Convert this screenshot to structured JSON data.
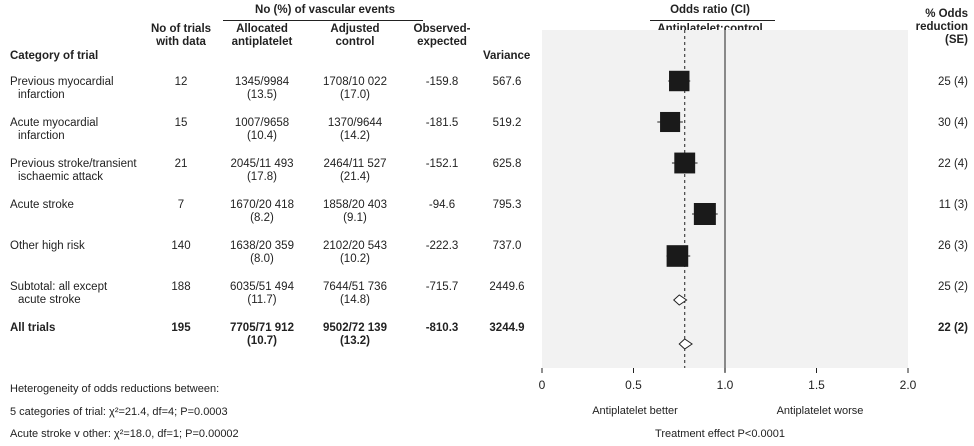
{
  "headers": {
    "events_group": "No (%) of vascular events",
    "category": "Category of trial",
    "n_trials": "No of trials with data",
    "allocated": "Allocated antiplatelet",
    "adjusted": "Adjusted control",
    "oe": "Observed-expected",
    "variance": "Variance",
    "odds_ratio": "Odds ratio (CI)",
    "comparison": "Antiplatelet:control",
    "pct_reduction": "% Odds reduction (SE)"
  },
  "rows": [
    {
      "label_1": "Previous myocardial",
      "label_2": "infarction",
      "n": "12",
      "alloc_1": "1345/9984",
      "alloc_2": "(13.5)",
      "adj_1": "1708/10 022",
      "adj_2": "(17.0)",
      "oe": "-159.8",
      "var": "567.6",
      "reduction": "25 (4)"
    },
    {
      "label_1": "Acute myocardial",
      "label_2": "infarction",
      "n": "15",
      "alloc_1": "1007/9658",
      "alloc_2": "(10.4)",
      "adj_1": "1370/9644",
      "adj_2": "(14.2)",
      "oe": "-181.5",
      "var": "519.2",
      "reduction": "30 (4)"
    },
    {
      "label_1": "Previous stroke/transient",
      "label_2": "ischaemic attack",
      "n": "21",
      "alloc_1": "2045/11 493",
      "alloc_2": "(17.8)",
      "adj_1": "2464/11 527",
      "adj_2": "(21.4)",
      "oe": "-152.1",
      "var": "625.8",
      "reduction": "22 (4)"
    },
    {
      "label_1": "Acute stroke",
      "label_2": "",
      "n": "7",
      "alloc_1": "1670/20 418",
      "alloc_2": "(8.2)",
      "adj_1": "1858/20 403",
      "adj_2": "(9.1)",
      "oe": "-94.6",
      "var": "795.3",
      "reduction": "11 (3)"
    },
    {
      "label_1": "Other high risk",
      "label_2": "",
      "n": "140",
      "alloc_1": "1638/20 359",
      "alloc_2": "(8.0)",
      "adj_1": "2102/20 543",
      "adj_2": "(10.2)",
      "oe": "-222.3",
      "var": "737.0",
      "reduction": "26 (3)"
    },
    {
      "label_1": "Subtotal: all except",
      "label_2": "acute stroke",
      "n": "188",
      "alloc_1": "6035/51 494",
      "alloc_2": "(11.7)",
      "adj_1": "7644/51 736",
      "adj_2": "(14.8)",
      "oe": "-715.7",
      "var": "2449.6",
      "reduction": "25 (2)"
    },
    {
      "label_1": "All trials",
      "label_2": "",
      "n": "195",
      "alloc_1": "7705/71 912",
      "alloc_2": "(10.7)",
      "adj_1": "9502/72 139",
      "adj_2": "(13.2)",
      "oe": "-810.3",
      "var": "3244.9",
      "reduction": "22 (2)"
    }
  ],
  "footnotes": {
    "line1": "Heterogeneity of odds reductions between:",
    "line2": "5 categories of trial: χ²=21.4, df=4; P=0.0003",
    "line3": "Acute stroke v other: χ²=18.0, df=1; P=0.00002"
  },
  "axis": {
    "better": "Antiplatelet better",
    "worse": "Antiplatelet worse",
    "effect": "Treatment effect P<0.0001"
  },
  "colors": {
    "panel": "#f2f2f2",
    "marker": "#1a1a1a",
    "line": "#444444"
  },
  "chart_data": {
    "type": "forest",
    "xlim": [
      0,
      2.0
    ],
    "xticks": [
      0,
      0.5,
      1.0,
      1.5,
      2.0
    ],
    "xtick_labels": [
      "0",
      "0.5",
      "1.0",
      "1.5",
      "2.0"
    ],
    "null_line": 1.0,
    "overall_line": 0.78,
    "categories": [
      "Previous myocardial infarction",
      "Acute myocardial infarction",
      "Previous stroke/transient ischaemic attack",
      "Acute stroke",
      "Other high risk",
      "Subtotal: all except acute stroke",
      "All trials"
    ],
    "estimates": [
      {
        "or": 0.75,
        "lo": 0.69,
        "hi": 0.81,
        "shape": "square",
        "weight": 567.6
      },
      {
        "or": 0.7,
        "lo": 0.63,
        "hi": 0.77,
        "shape": "square",
        "weight": 519.2
      },
      {
        "or": 0.78,
        "lo": 0.71,
        "hi": 0.85,
        "shape": "square",
        "weight": 625.8
      },
      {
        "or": 0.89,
        "lo": 0.82,
        "hi": 0.96,
        "shape": "square",
        "weight": 795.3
      },
      {
        "or": 0.74,
        "lo": 0.68,
        "hi": 0.81,
        "shape": "square",
        "weight": 737.0
      },
      {
        "or": 0.75,
        "lo": 0.72,
        "hi": 0.79,
        "shape": "diamond"
      },
      {
        "or": 0.78,
        "lo": 0.75,
        "hi": 0.82,
        "shape": "diamond"
      }
    ]
  }
}
